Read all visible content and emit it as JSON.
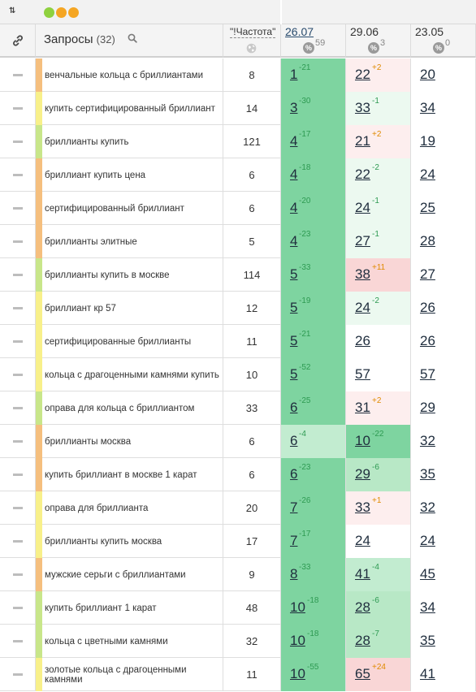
{
  "toolbar": {
    "sort_icon": "⇅",
    "dots": [
      "#8fd13f",
      "#f5a623",
      "#f5a623"
    ]
  },
  "header": {
    "query_label": "Запросы",
    "query_count": "(32)",
    "freq_label": "\"!Частота\"",
    "dates": [
      {
        "label": "26.07",
        "pct": "%",
        "change": "59",
        "underline": true
      },
      {
        "label": "29.06",
        "pct": "%",
        "change": "3",
        "underline": false
      },
      {
        "label": "23.05",
        "pct": "%",
        "change": "0",
        "underline": false
      }
    ]
  },
  "rows": [
    {
      "query": "венчальные кольца с бриллиантами",
      "freq": "8",
      "stripe": "#f5bf7e",
      "positions": [
        {
          "v": "1",
          "d": "-21",
          "dc": "g",
          "bg": "bg-dg"
        },
        {
          "v": "22",
          "d": "+2",
          "dc": "o",
          "bg": "bg-lp"
        },
        {
          "v": "20",
          "d": "",
          "dc": "",
          "bg": "bg-w"
        }
      ]
    },
    {
      "query": "купить сертифицированный бриллиант",
      "freq": "14",
      "stripe": "#f8f08a",
      "positions": [
        {
          "v": "3",
          "d": "-30",
          "dc": "g",
          "bg": "bg-dg"
        },
        {
          "v": "33",
          "d": "-1",
          "dc": "g",
          "bg": "bg-vlg"
        },
        {
          "v": "34",
          "d": "",
          "dc": "",
          "bg": "bg-w"
        }
      ]
    },
    {
      "query": "бриллианты купить",
      "freq": "121",
      "stripe": "#c8e68a",
      "positions": [
        {
          "v": "4",
          "d": "-17",
          "dc": "g",
          "bg": "bg-dg"
        },
        {
          "v": "21",
          "d": "+2",
          "dc": "o",
          "bg": "bg-lp"
        },
        {
          "v": "19",
          "d": "",
          "dc": "",
          "bg": "bg-w"
        }
      ]
    },
    {
      "query": "бриллиант купить цена",
      "freq": "6",
      "stripe": "#f5bf7e",
      "positions": [
        {
          "v": "4",
          "d": "-18",
          "dc": "g",
          "bg": "bg-dg"
        },
        {
          "v": "22",
          "d": "-2",
          "dc": "g",
          "bg": "bg-vlg"
        },
        {
          "v": "24",
          "d": "",
          "dc": "",
          "bg": "bg-w"
        }
      ]
    },
    {
      "query": "сертифицированный бриллиант",
      "freq": "6",
      "stripe": "#f5bf7e",
      "positions": [
        {
          "v": "4",
          "d": "-20",
          "dc": "g",
          "bg": "bg-dg"
        },
        {
          "v": "24",
          "d": "-1",
          "dc": "g",
          "bg": "bg-vlg"
        },
        {
          "v": "25",
          "d": "",
          "dc": "",
          "bg": "bg-w"
        }
      ]
    },
    {
      "query": "бриллианты элитные",
      "freq": "5",
      "stripe": "#f5bf7e",
      "positions": [
        {
          "v": "4",
          "d": "-23",
          "dc": "g",
          "bg": "bg-dg"
        },
        {
          "v": "27",
          "d": "-1",
          "dc": "g",
          "bg": "bg-vlg"
        },
        {
          "v": "28",
          "d": "",
          "dc": "",
          "bg": "bg-w"
        }
      ]
    },
    {
      "query": "бриллианты купить в москве",
      "freq": "114",
      "stripe": "#c8e68a",
      "positions": [
        {
          "v": "5",
          "d": "-33",
          "dc": "g",
          "bg": "bg-dg"
        },
        {
          "v": "38",
          "d": "+11",
          "dc": "o",
          "bg": "bg-pp"
        },
        {
          "v": "27",
          "d": "",
          "dc": "",
          "bg": "bg-w"
        }
      ]
    },
    {
      "query": "бриллиант кр 57",
      "freq": "12",
      "stripe": "#f8f08a",
      "positions": [
        {
          "v": "5",
          "d": "-19",
          "dc": "g",
          "bg": "bg-dg"
        },
        {
          "v": "24",
          "d": "-2",
          "dc": "g",
          "bg": "bg-vlg"
        },
        {
          "v": "26",
          "d": "",
          "dc": "",
          "bg": "bg-w"
        }
      ]
    },
    {
      "query": "сертифицированные бриллианты",
      "freq": "11",
      "stripe": "#f8f08a",
      "positions": [
        {
          "v": "5",
          "d": "-21",
          "dc": "g",
          "bg": "bg-dg"
        },
        {
          "v": "26",
          "d": "",
          "dc": "",
          "bg": "bg-w"
        },
        {
          "v": "26",
          "d": "",
          "dc": "",
          "bg": "bg-w"
        }
      ]
    },
    {
      "query": "кольца с драгоценными камнями купить",
      "freq": "10",
      "stripe": "#f8f08a",
      "positions": [
        {
          "v": "5",
          "d": "-52",
          "dc": "g",
          "bg": "bg-dg"
        },
        {
          "v": "57",
          "d": "",
          "dc": "",
          "bg": "bg-w"
        },
        {
          "v": "57",
          "d": "",
          "dc": "",
          "bg": "bg-w"
        }
      ]
    },
    {
      "query": "оправа для кольца с бриллиантом",
      "freq": "33",
      "stripe": "#c8e68a",
      "positions": [
        {
          "v": "6",
          "d": "-25",
          "dc": "g",
          "bg": "bg-dg"
        },
        {
          "v": "31",
          "d": "+2",
          "dc": "o",
          "bg": "bg-lp"
        },
        {
          "v": "29",
          "d": "",
          "dc": "",
          "bg": "bg-w"
        }
      ]
    },
    {
      "query": "бриллианты москва",
      "freq": "6",
      "stripe": "#f5bf7e",
      "positions": [
        {
          "v": "6",
          "d": "-4",
          "dc": "g",
          "bg": "bg-lg"
        },
        {
          "v": "10",
          "d": "-22",
          "dc": "g",
          "bg": "bg-dg"
        },
        {
          "v": "32",
          "d": "",
          "dc": "",
          "bg": "bg-w"
        }
      ]
    },
    {
      "query": "купить бриллиант в москве 1 карат",
      "freq": "6",
      "stripe": "#f5bf7e",
      "positions": [
        {
          "v": "6",
          "d": "-23",
          "dc": "g",
          "bg": "bg-dg"
        },
        {
          "v": "29",
          "d": "-6",
          "dc": "g",
          "bg": "bg-mg"
        },
        {
          "v": "35",
          "d": "",
          "dc": "",
          "bg": "bg-w"
        }
      ]
    },
    {
      "query": "оправа для бриллианта",
      "freq": "20",
      "stripe": "#f8f08a",
      "positions": [
        {
          "v": "7",
          "d": "-26",
          "dc": "g",
          "bg": "bg-dg"
        },
        {
          "v": "33",
          "d": "+1",
          "dc": "o",
          "bg": "bg-lp"
        },
        {
          "v": "32",
          "d": "",
          "dc": "",
          "bg": "bg-w"
        }
      ]
    },
    {
      "query": "бриллианты купить москва",
      "freq": "17",
      "stripe": "#f8f08a",
      "positions": [
        {
          "v": "7",
          "d": "-17",
          "dc": "g",
          "bg": "bg-dg"
        },
        {
          "v": "24",
          "d": "",
          "dc": "",
          "bg": "bg-w"
        },
        {
          "v": "24",
          "d": "",
          "dc": "",
          "bg": "bg-w"
        }
      ]
    },
    {
      "query": "мужские серьги с бриллиантами",
      "freq": "9",
      "stripe": "#f5bf7e",
      "positions": [
        {
          "v": "8",
          "d": "-33",
          "dc": "g",
          "bg": "bg-dg"
        },
        {
          "v": "41",
          "d": "-4",
          "dc": "g",
          "bg": "bg-lg"
        },
        {
          "v": "45",
          "d": "",
          "dc": "",
          "bg": "bg-w"
        }
      ]
    },
    {
      "query": "купить бриллиант 1 карат",
      "freq": "48",
      "stripe": "#c8e68a",
      "positions": [
        {
          "v": "10",
          "d": "-18",
          "dc": "g",
          "bg": "bg-dg"
        },
        {
          "v": "28",
          "d": "-6",
          "dc": "g",
          "bg": "bg-mg"
        },
        {
          "v": "34",
          "d": "",
          "dc": "",
          "bg": "bg-w"
        }
      ]
    },
    {
      "query": "кольца с цветными камнями",
      "freq": "32",
      "stripe": "#c8e68a",
      "positions": [
        {
          "v": "10",
          "d": "-18",
          "dc": "g",
          "bg": "bg-dg"
        },
        {
          "v": "28",
          "d": "-7",
          "dc": "g",
          "bg": "bg-mg"
        },
        {
          "v": "35",
          "d": "",
          "dc": "",
          "bg": "bg-w"
        }
      ]
    },
    {
      "query": "золотые кольца с драгоценными камнями",
      "freq": "11",
      "stripe": "#f8f08a",
      "positions": [
        {
          "v": "10",
          "d": "-55",
          "dc": "g",
          "bg": "bg-dg"
        },
        {
          "v": "65",
          "d": "+24",
          "dc": "o",
          "bg": "bg-pp"
        },
        {
          "v": "41",
          "d": "",
          "dc": "",
          "bg": "bg-w"
        }
      ]
    }
  ]
}
